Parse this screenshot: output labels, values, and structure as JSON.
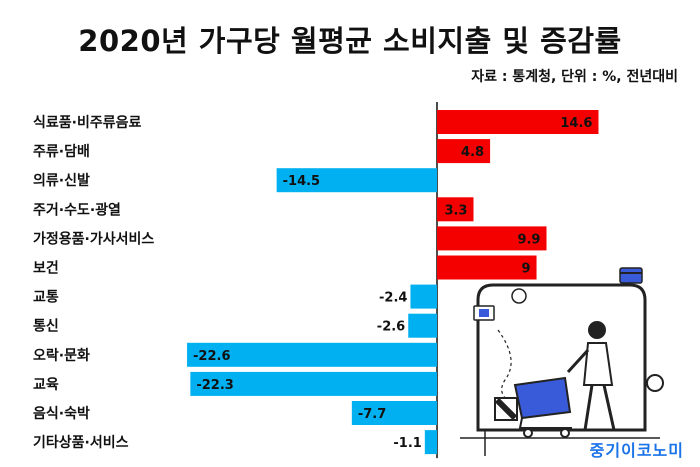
{
  "title": "2020년 가구당 월평균 소비지출 및 증감률",
  "subtitle": "자료 : 통계청, 단위 : %, 전년대비",
  "brand": "중기이코노미",
  "colors": {
    "positive": "#f40000",
    "negative": "#00b0f0",
    "zero_line": "#111111"
  },
  "chart_data": {
    "type": "bar",
    "orientation": "horizontal",
    "categories": [
      "식료품·비주류음료",
      "주류·담배",
      "의류·신발",
      "주거·수도·광열",
      "가정용품·가사서비스",
      "보건",
      "교통",
      "통신",
      "오락·문화",
      "교육",
      "음식·숙박",
      "기타상품·서비스"
    ],
    "values": [
      14.6,
      4.8,
      -14.5,
      3.3,
      9.9,
      9,
      -2.4,
      -2.6,
      -22.6,
      -22.3,
      -7.7,
      -1.1
    ],
    "value_labels": [
      "14.6",
      "4.8",
      "-14.5",
      "3.3",
      "9.9",
      "9",
      "-2.4",
      "-2.6",
      "-22.6",
      "-22.3",
      "-7.7",
      "-1.1"
    ],
    "xlim": [
      -22.6,
      20.3
    ],
    "grid": false,
    "legend": false
  }
}
